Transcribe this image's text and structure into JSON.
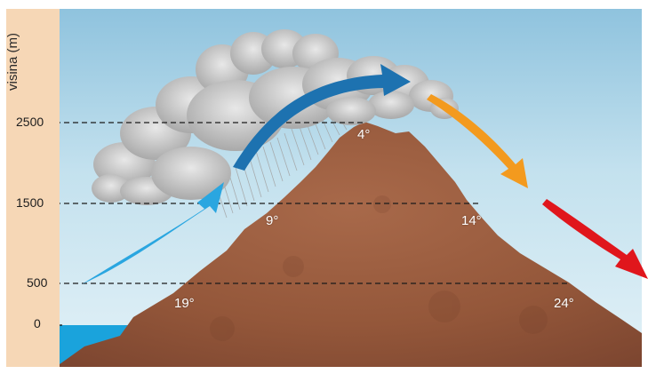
{
  "axis": {
    "title": "visina (m)",
    "ticks": [
      {
        "label": "2500"
      },
      {
        "label": "1500"
      },
      {
        "label": "500"
      },
      {
        "label": "0"
      }
    ]
  },
  "temperatures": {
    "windward_500": "19°",
    "windward_1500": "9°",
    "summit_2500": "4°",
    "leeward_1500": "14°",
    "leeward_500": "24°"
  },
  "colors": {
    "sky": "#cfe8f2",
    "axis_strip": "#f6d7b6",
    "sea": "#1aa3dc",
    "mountain": "#9c5a3c",
    "cloud": "#bdbdbd",
    "rain": "#a3a3a3",
    "arrow_light_blue": "#2aa6e0",
    "arrow_dark_blue": "#1d72b0",
    "arrow_orange": "#f39a1e",
    "arrow_red": "#e0161c"
  }
}
